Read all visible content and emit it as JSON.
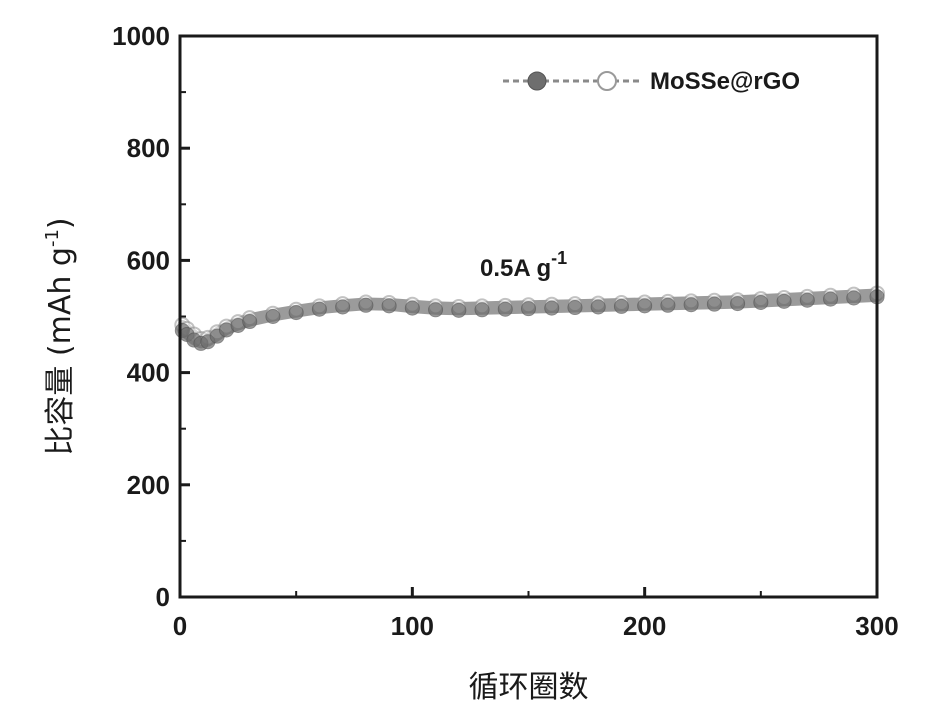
{
  "chart_data": {
    "type": "scatter",
    "title": "",
    "xlabel": "循环圈数",
    "ylabel": "比容量 (mAh g-1)",
    "ylabel_main": "比容量 (mAh g",
    "ylabel_sup": "-1",
    "ylabel_tail": ")",
    "xlim": [
      0,
      300
    ],
    "ylim": [
      0,
      1000
    ],
    "xticks": [
      "0",
      "100",
      "200",
      "300"
    ],
    "yticks": [
      "0",
      "200",
      "400",
      "600",
      "800",
      "1000"
    ],
    "grid": false,
    "legend_position": "top-right",
    "annotation": "0.5A g-1",
    "annotation_main": "0.5A g",
    "annotation_sup": "-1",
    "series": [
      {
        "name": "MoSSe@rGO",
        "x": [
          1,
          3,
          6,
          9,
          12,
          16,
          20,
          25,
          30,
          40,
          50,
          60,
          70,
          80,
          90,
          100,
          110,
          120,
          130,
          140,
          150,
          160,
          170,
          180,
          190,
          200,
          210,
          220,
          230,
          240,
          250,
          260,
          270,
          280,
          290,
          300
        ],
        "charge": [
          485,
          478,
          468,
          460,
          462,
          472,
          482,
          490,
          497,
          505,
          512,
          518,
          522,
          525,
          524,
          521,
          518,
          517,
          518,
          519,
          520,
          521,
          522,
          523,
          524,
          525,
          526,
          527,
          528,
          529,
          531,
          533,
          535,
          537,
          539,
          541
        ],
        "discharge": [
          475,
          468,
          458,
          452,
          455,
          465,
          476,
          484,
          491,
          500,
          507,
          513,
          517,
          520,
          519,
          515,
          512,
          511,
          512,
          513,
          514,
          515,
          516,
          517,
          518,
          519,
          520,
          521,
          522,
          523,
          525,
          527,
          529,
          531,
          533,
          535
        ]
      }
    ]
  },
  "colors": {
    "filled_marker": "#6e6e6e",
    "open_marker_fill": "#ffffff",
    "open_marker_stroke": "#9a9a9a",
    "band": "#8a8a8a",
    "axis": "#1a1a1a"
  }
}
